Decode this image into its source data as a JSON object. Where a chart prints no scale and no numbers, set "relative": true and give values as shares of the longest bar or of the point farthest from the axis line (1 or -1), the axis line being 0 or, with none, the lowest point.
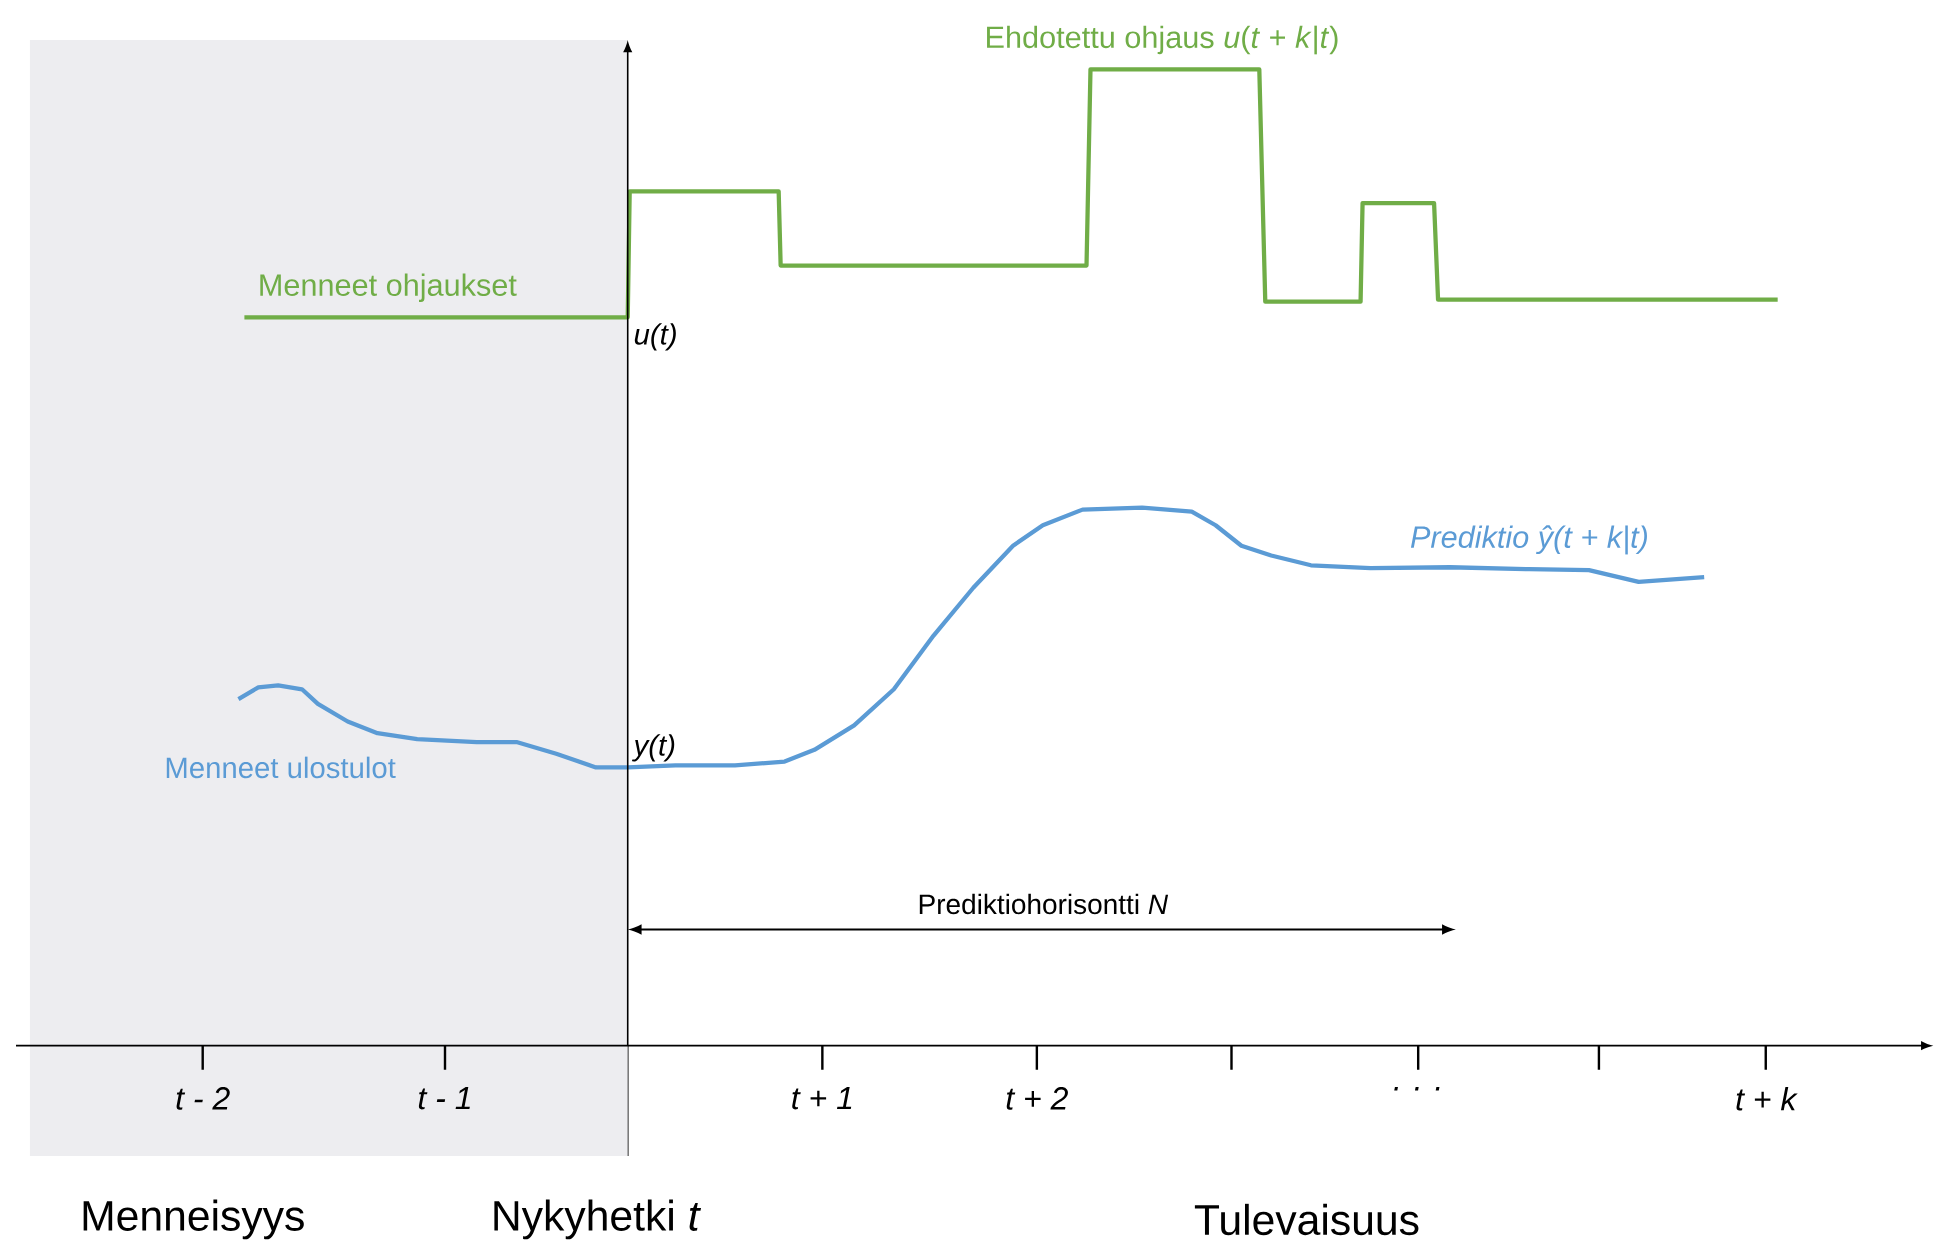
{
  "chart_data": {
    "type": "line",
    "relative": true,
    "xlim": [
      -3.08,
      6.52
    ],
    "xticks": [
      {
        "value": -2.14,
        "label": "t - 2"
      },
      {
        "value": -0.92,
        "label": "t - 1"
      },
      {
        "value": 0.98,
        "label": "t + 1"
      },
      {
        "value": 2.06,
        "label": "t + 2"
      },
      {
        "value": 3.04,
        "label": null
      },
      {
        "value": 3.98,
        "label": ". . ."
      },
      {
        "value": 4.89,
        "label": null
      },
      {
        "value": 5.73,
        "label": "t + k"
      }
    ],
    "series": [
      {
        "color": "#70ad47",
        "x": [
          -1.93,
          0,
          0.01,
          0.76,
          0.77,
          2.31,
          2.33,
          3.18,
          3.21,
          3.69,
          3.7,
          4.06,
          4.08,
          5.79
        ],
        "values": [
          0.746,
          0.746,
          0.875,
          0.875,
          0.799,
          0.799,
          1.0,
          1.0,
          0.762,
          0.762,
          0.863,
          0.863,
          0.764,
          0.764
        ]
      },
      {
        "color": "#5b9bd5",
        "x": [
          -1.96,
          -1.86,
          -1.76,
          -1.64,
          -1.56,
          -1.41,
          -1.26,
          -1.06,
          -0.76,
          -0.56,
          -0.36,
          -0.16,
          0,
          0.24,
          0.54,
          0.79,
          0.94,
          1.14,
          1.34,
          1.54,
          1.74,
          1.94,
          2.09,
          2.29,
          2.59,
          2.84,
          2.96,
          3.09,
          3.24,
          3.44,
          3.74,
          4.14,
          4.54,
          4.84,
          5.09,
          5.42
        ],
        "values": [
          0.355,
          0.367,
          0.369,
          0.365,
          0.35,
          0.332,
          0.32,
          0.314,
          0.311,
          0.311,
          0.299,
          0.285,
          0.285,
          0.287,
          0.287,
          0.291,
          0.303,
          0.328,
          0.365,
          0.42,
          0.469,
          0.512,
          0.533,
          0.549,
          0.551,
          0.547,
          0.533,
          0.512,
          0.502,
          0.492,
          0.489,
          0.49,
          0.488,
          0.487,
          0.475,
          0.48
        ]
      }
    ],
    "bands": [
      {
        "axis": "x",
        "from": -3.01,
        "to": 0,
        "color": "#ededf0"
      }
    ],
    "annotations": [
      {
        "text": "u(t)",
        "x": 0,
        "y": 0.746
      },
      {
        "text": "y(t)",
        "x": 0,
        "y": 0.285
      },
      "Menneet ohjaukset",
      "Ehdotettu ohjaus *u*(*t* + *k*|*t*)",
      "Menneet ulostulot",
      "Prediktio ŷ(t + k|t)",
      "Prediktiohorisontti *N*",
      "Menneisyys",
      "Nykyhetki *t*",
      "Tulevaisuus"
    ]
  }
}
